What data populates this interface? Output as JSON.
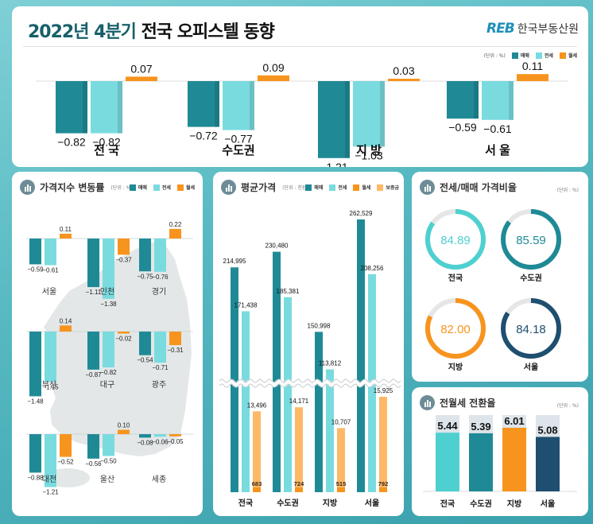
{
  "header": {
    "title_highlight": "2022년 4분기",
    "title_rest": "전국 오피스텔 동향",
    "logo_mark": "REB",
    "logo_text": "한국부동산원"
  },
  "colors": {
    "sale": "#1f8a96",
    "jeonse": "#7adbdf",
    "wolse": "#f7941d",
    "deposit": "#fdb868",
    "navy": "#1f4f70",
    "ring_bg": "#e6e6e6",
    "jeonse_ring": "#4fd0d0"
  },
  "legend": {
    "unit": "(단위 : %)",
    "sale": "매매",
    "jeonse": "전세",
    "wolse": "월세",
    "deposit": "보증금"
  },
  "sections": {
    "index": {
      "title": "가격지수 변동률",
      "unit": "(단위 : %)"
    },
    "avg": {
      "title": "평균가격",
      "unit": "(단위 : 천원)"
    },
    "ratio": {
      "title": "전세/매매 가격비율",
      "unit": "(단위 : %)"
    },
    "conv": {
      "title": "전월세 전환율",
      "unit": "(단위 : %)"
    }
  },
  "chart_data": [
    {
      "id": "summary",
      "type": "bar",
      "title": "2022년 4분기 전국 오피스텔 동향",
      "unit": "%",
      "categories": [
        "전 국",
        "수도권",
        "지 방",
        "서 울"
      ],
      "series": [
        {
          "name": "매매",
          "values": [
            -0.82,
            -0.72,
            -1.21,
            -0.59
          ]
        },
        {
          "name": "전세",
          "values": [
            -0.82,
            -0.77,
            -1.03,
            -0.61
          ]
        },
        {
          "name": "월세",
          "values": [
            0.07,
            0.09,
            0.03,
            0.11
          ]
        }
      ]
    },
    {
      "id": "index_change",
      "type": "bar",
      "title": "가격지수 변동률",
      "unit": "%",
      "categories": [
        "서울",
        "인천",
        "경기",
        "부산",
        "대구",
        "광주",
        "대전",
        "울산",
        "세종"
      ],
      "series": [
        {
          "name": "매매",
          "values": [
            -0.59,
            -1.11,
            -0.75,
            -1.48,
            -0.87,
            -0.54,
            -0.88,
            -0.56,
            -0.08
          ]
        },
        {
          "name": "전세",
          "values": [
            -0.61,
            -1.38,
            -0.76,
            -1.15,
            -0.82,
            -0.71,
            -1.21,
            -0.5,
            -0.06
          ]
        },
        {
          "name": "월세",
          "values": [
            0.11,
            -0.37,
            0.22,
            0.14,
            -0.02,
            -0.31,
            -0.52,
            0.1,
            -0.05
          ]
        }
      ],
      "value_labels": {
        "매매": [
          "-0.59",
          "-1.11",
          "-0.75",
          "-1.48",
          "-0.87",
          "-0.54",
          "-0.88",
          "-0.56",
          "-0.08"
        ],
        "전세": [
          "-0.61",
          "-1.38",
          "-0.76",
          "-1.15",
          "-0.82",
          "-0.71",
          "-1.21",
          "-0.50",
          "-0.06"
        ],
        "월세": [
          "0.11",
          "-0.37",
          "0.22",
          "0.14",
          "-0.02",
          "-0.31",
          "-0.52",
          "0.10",
          "-0.05"
        ]
      }
    },
    {
      "id": "avg_price",
      "type": "bar",
      "title": "평균가격",
      "unit": "천원",
      "axis_break": true,
      "categories": [
        "전국",
        "수도권",
        "지방",
        "서울"
      ],
      "series": [
        {
          "name": "매매",
          "values": [
            214995,
            230480,
            150998,
            262529
          ]
        },
        {
          "name": "전세",
          "values": [
            171438,
            185381,
            113812,
            208256
          ]
        },
        {
          "name": "보증금",
          "values": [
            13496,
            14171,
            10707,
            15925
          ]
        },
        {
          "name": "월세",
          "values": [
            683,
            724,
            515,
            792
          ]
        }
      ],
      "value_labels": {
        "매매": [
          "214,995",
          "230,480",
          "150,998",
          "262,529"
        ],
        "전세": [
          "171,438",
          "185,381",
          "113,812",
          "208,256"
        ],
        "보증금": [
          "13,496",
          "14,171",
          "10,707",
          "15,925"
        ],
        "월세": [
          "683",
          "724",
          "515",
          "792"
        ]
      }
    },
    {
      "id": "jeonse_ratio",
      "type": "pie",
      "title": "전세/매매 가격비율",
      "unit": "%",
      "categories": [
        "전국",
        "수도권",
        "지방",
        "서울"
      ],
      "values": [
        84.89,
        85.59,
        82.0,
        84.18
      ],
      "value_labels": [
        "84.89",
        "85.59",
        "82.00",
        "84.18"
      ]
    },
    {
      "id": "conversion_rate",
      "type": "bar",
      "title": "전월세 전환율",
      "unit": "%",
      "categories": [
        "전국",
        "수도권",
        "지방",
        "서울"
      ],
      "values": [
        5.44,
        5.39,
        6.01,
        5.08
      ],
      "value_labels": [
        "5.44",
        "5.39",
        "6.01",
        "5.08"
      ],
      "ylim": [
        0,
        7
      ]
    }
  ]
}
